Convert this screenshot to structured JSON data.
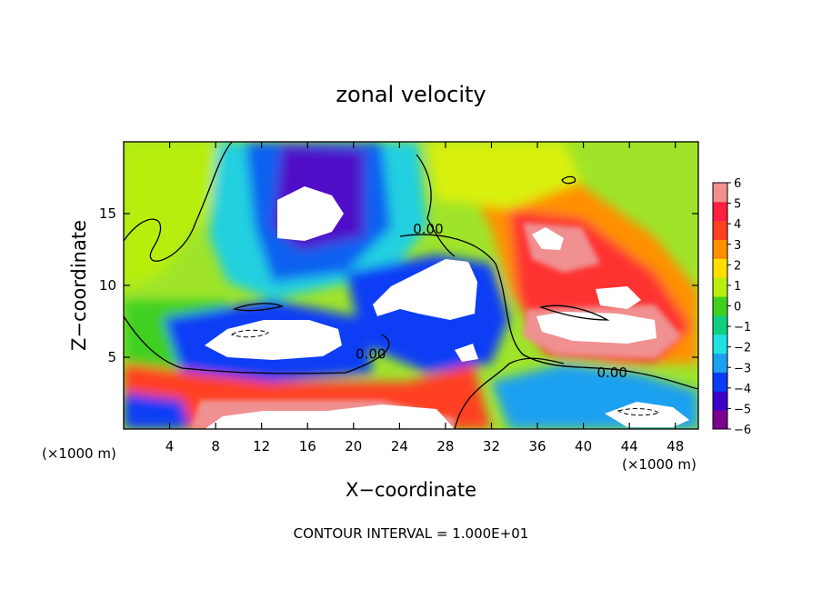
{
  "chart_data": {
    "type": "heatmap",
    "title": "zonal velocity",
    "xlabel": "X−coordinate",
    "ylabel": "Z−coordinate",
    "x_unit_left": "(×1000 m)",
    "x_unit_right": "(×1000 m)",
    "xlim": [
      0,
      50
    ],
    "ylim": [
      0,
      20
    ],
    "x_ticks": [
      4,
      8,
      12,
      16,
      20,
      24,
      28,
      32,
      36,
      40,
      44,
      48
    ],
    "y_ticks": [
      5,
      10,
      15
    ],
    "colorbar": {
      "range": [
        -6,
        6
      ],
      "ticks": [
        6,
        5,
        4,
        3,
        2,
        1,
        0,
        -1,
        -2,
        -3,
        -4,
        -5,
        -6
      ],
      "tick_labels": [
        "6",
        "5",
        "4",
        "3",
        "2",
        "1",
        "0",
        "−1",
        "−2",
        "−3",
        "−4",
        "−5",
        "−6"
      ],
      "colors": [
        "#7a008f",
        "#3a00c8",
        "#0a3cf5",
        "#1aa0f0",
        "#20e0e0",
        "#10d080",
        "#40d020",
        "#b8ee10",
        "#ffe000",
        "#ff9000",
        "#ff4020",
        "#ff2040",
        "#f09090"
      ]
    },
    "contour_labels": [
      {
        "text": "0.00",
        "x": 26.5,
        "z": 13.6
      },
      {
        "text": "0.00",
        "x": 21.5,
        "z": 4.9
      },
      {
        "text": "0.00",
        "x": 42.5,
        "z": 3.6
      }
    ],
    "contour_interval_text": "CONTOUR INTERVAL = 1.000E+01",
    "grid": false,
    "colorbar_position": "right"
  }
}
